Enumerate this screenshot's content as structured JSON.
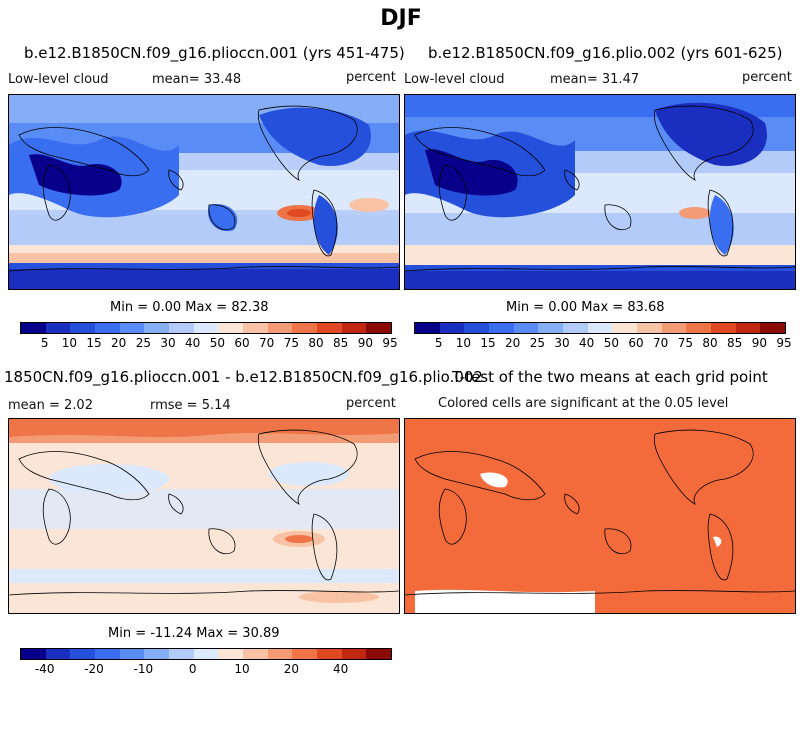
{
  "title": "DJF",
  "panels": [
    {
      "title": "b.e12.B1850CN.f09_g16.plioccn.001 (yrs 451-475)",
      "left": "Low-level cloud",
      "mean": "mean=  33.48",
      "right": "percent",
      "minmax": "Min =   0.00 Max =  82.38"
    },
    {
      "title": "b.e12.B1850CN.f09_g16.plio.002 (yrs 601-625)",
      "left": "Low-level cloud",
      "mean": "mean=  31.47",
      "right": "percent",
      "minmax": "Min =   0.00 Max =  83.68"
    },
    {
      "title": "1850CN.f09_g16.plioccn.001 - b.e12.B1850CN.f09_g16.plio.002",
      "left": "mean =   2.02",
      "mean": "rmse =   5.14",
      "right": "percent",
      "minmax": "Min = -11.24 Max =  30.89"
    },
    {
      "title": "T-test of the two means at each grid point",
      "left": "Colored cells are significant at the 0.05 level"
    }
  ],
  "colorbar_abs": {
    "colors": [
      "#08008a",
      "#1a2fc0",
      "#2450dc",
      "#3a6ef0",
      "#5a8cf5",
      "#86aef7",
      "#b2cbf8",
      "#dce8fb",
      "#fbe5d6",
      "#f8c2a4",
      "#f39b75",
      "#ef7448",
      "#e04a22",
      "#c0280f",
      "#8a0a05"
    ],
    "ticks": [
      "5",
      "10",
      "15",
      "20",
      "25",
      "30",
      "40",
      "50",
      "60",
      "70",
      "75",
      "80",
      "85",
      "90",
      "95"
    ]
  },
  "colorbar_diff": {
    "colors": [
      "#08008a",
      "#1a2fc0",
      "#2450dc",
      "#3a6ef0",
      "#5a8cf5",
      "#86aef7",
      "#b2cbf8",
      "#dce8fb",
      "#fbe5d6",
      "#f8c2a4",
      "#f39b75",
      "#ef7448",
      "#e04a22",
      "#c0280f",
      "#8a0a05"
    ],
    "ticks": [
      "-40",
      "-20",
      "-10",
      "0",
      "10",
      "20",
      "40"
    ]
  },
  "colors": {
    "ttest_fill": "#f36b3a"
  }
}
